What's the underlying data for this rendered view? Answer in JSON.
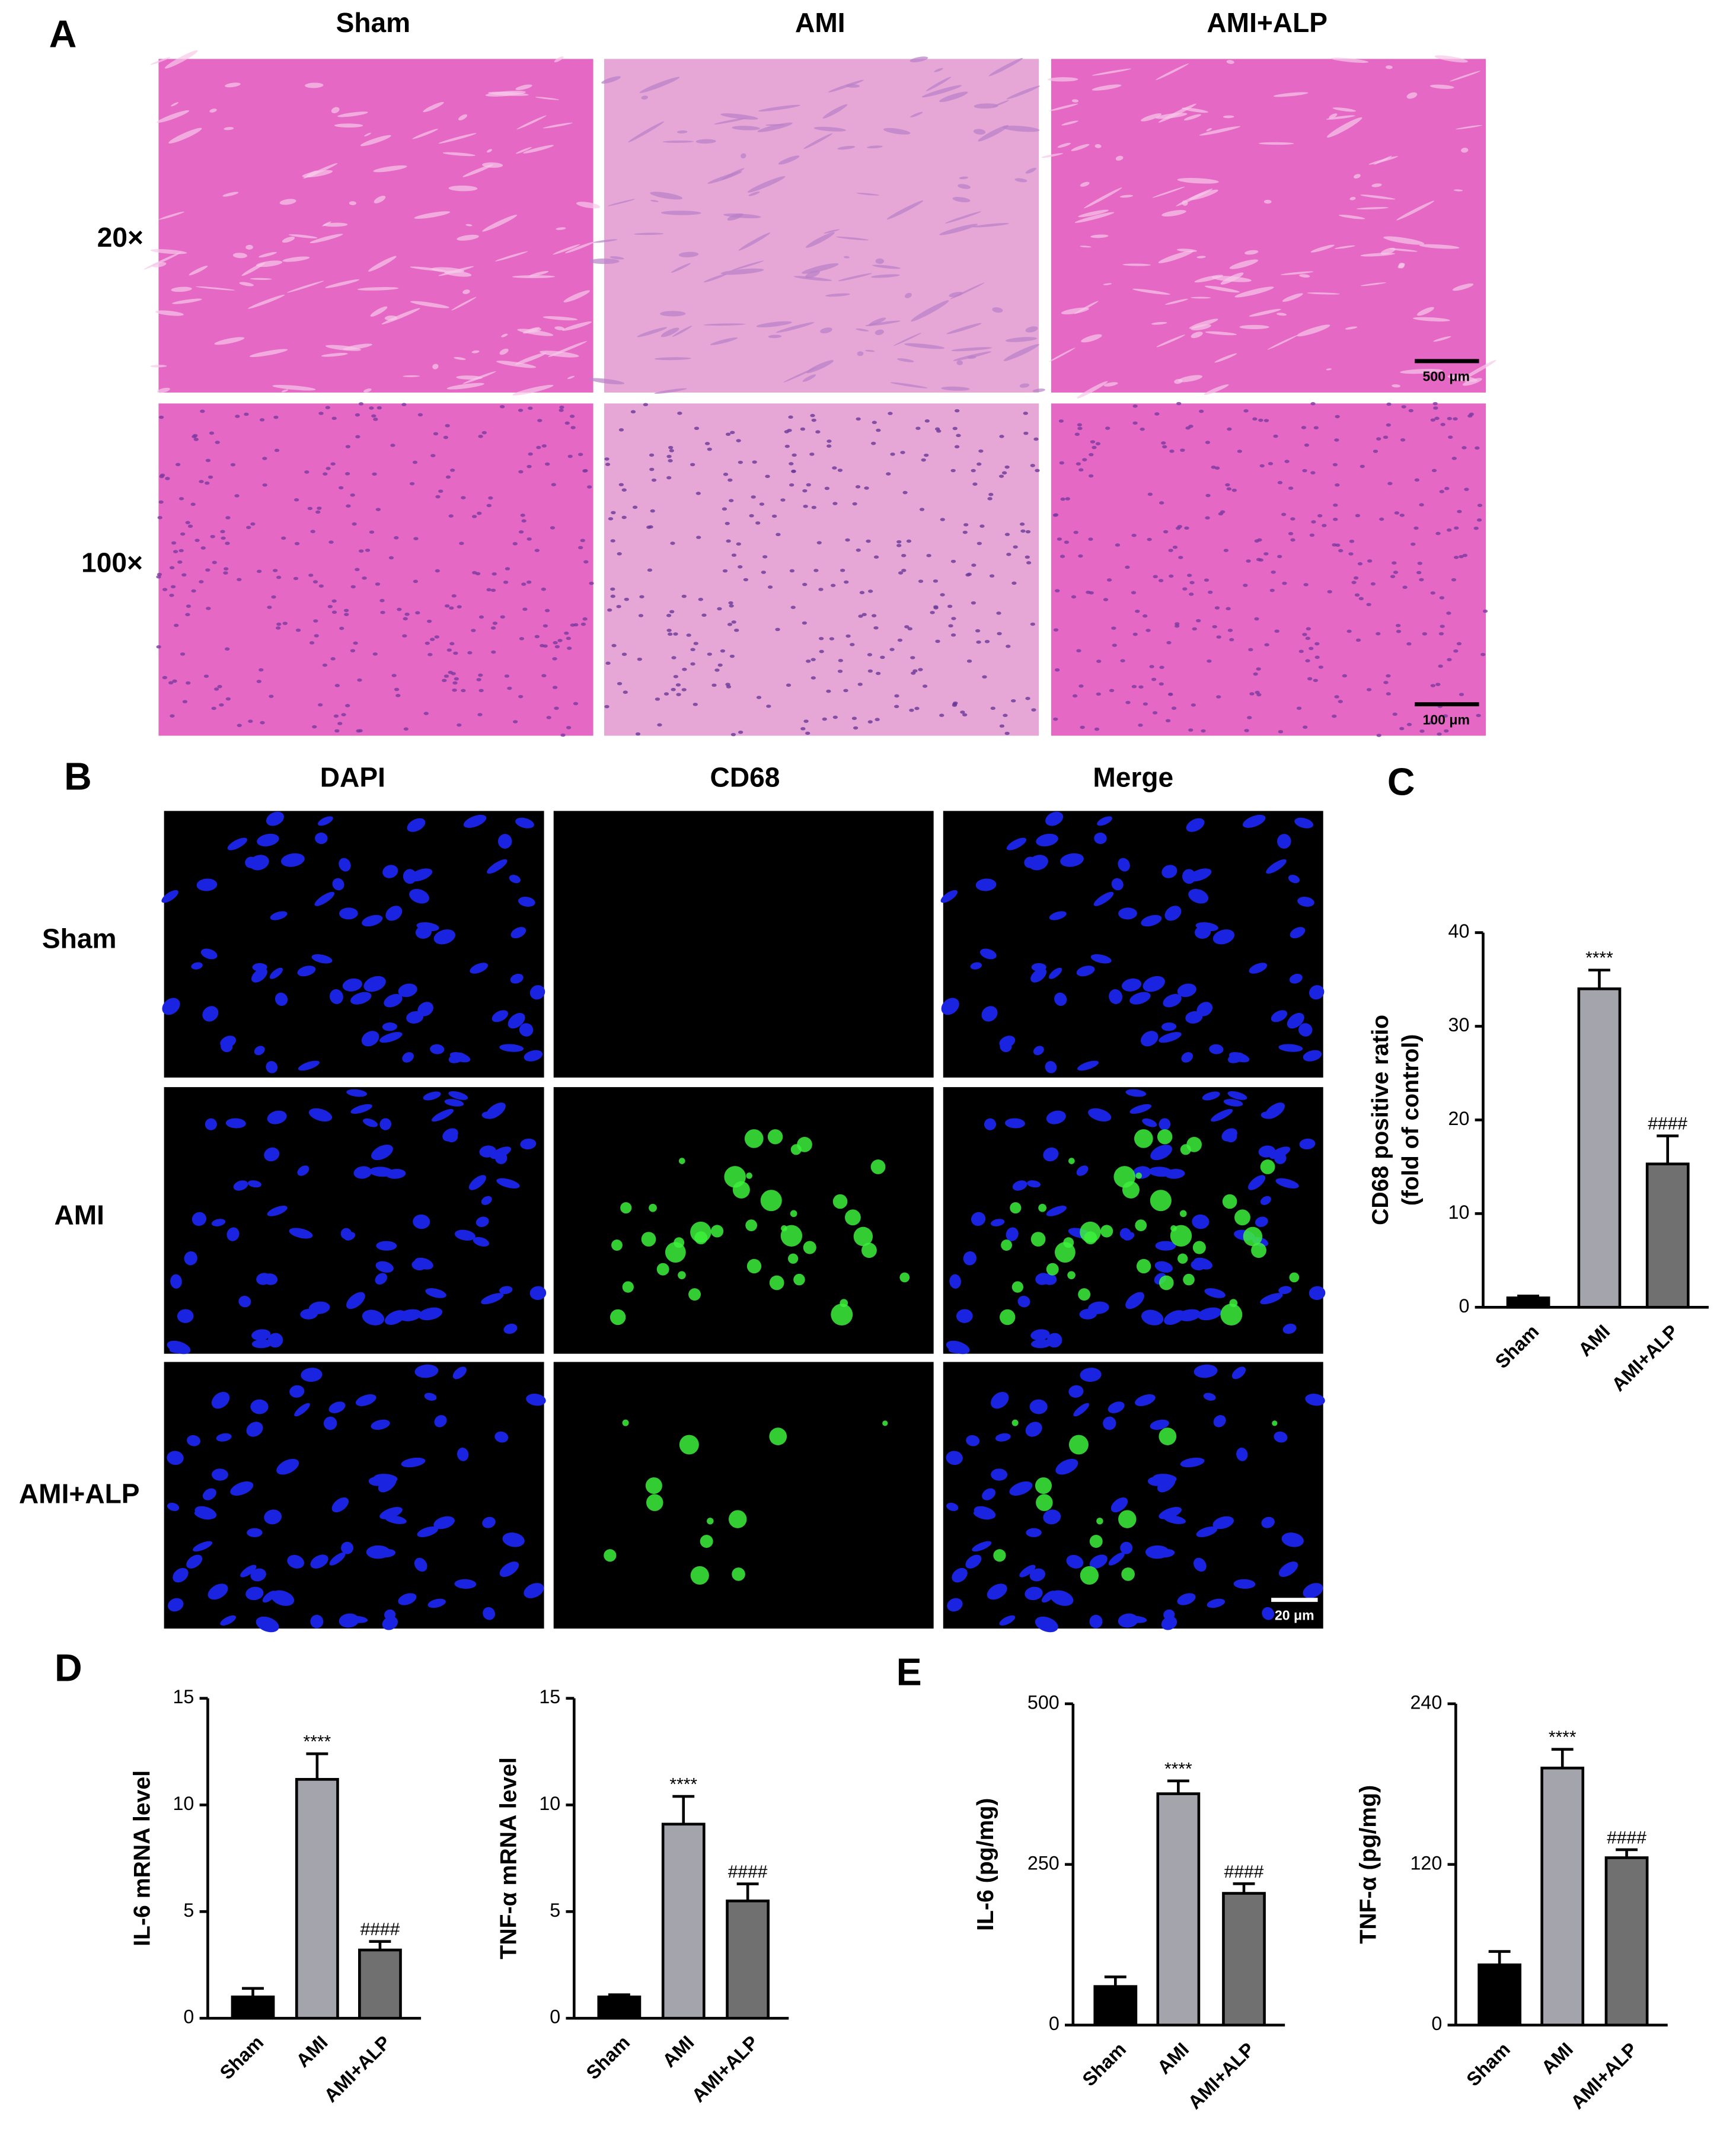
{
  "panels": {
    "A": {
      "label": "A",
      "columns": [
        "Sham",
        "AMI",
        "AMI+ALP"
      ],
      "rows": [
        "20×",
        "100×"
      ],
      "scale_bars": [
        "500 μm",
        "100 μm"
      ]
    },
    "B": {
      "label": "B",
      "columns": [
        "DAPI",
        "CD68",
        "Merge"
      ],
      "rows": [
        "Sham",
        "AMI",
        "AMI+ALP"
      ],
      "scale_bar": "20 μm"
    },
    "labels": [
      "C",
      "D",
      "E"
    ]
  },
  "chart_data": [
    {
      "type": "bar",
      "y_label": [
        "CD68 positive ratio",
        "(fold of control)"
      ],
      "categories": [
        "Sham",
        "AMI",
        "AMI+ALP"
      ],
      "values": [
        1.0,
        34.0,
        15.3
      ],
      "errors": [
        0.2,
        2.0,
        3.0
      ],
      "annotations": [
        null,
        "****",
        "####"
      ],
      "colors": [
        "#000000",
        "#a4a4ac",
        "#707070"
      ],
      "ylim": [
        0,
        40
      ],
      "yticks": [
        0,
        10,
        20,
        30,
        40
      ]
    },
    {
      "type": "bar",
      "y_label": [
        "IL-6 mRNA level"
      ],
      "categories": [
        "Sham",
        "AMI",
        "AMI+ALP"
      ],
      "values": [
        1.0,
        11.2,
        3.2
      ],
      "errors": [
        0.4,
        1.2,
        0.4
      ],
      "annotations": [
        null,
        "****",
        "####"
      ],
      "colors": [
        "#000000",
        "#a4a4ac",
        "#707070"
      ],
      "ylim": [
        0,
        15
      ],
      "yticks": [
        0,
        5,
        10,
        15
      ]
    },
    {
      "type": "bar",
      "y_label": [
        "TNF-α mRNA level"
      ],
      "categories": [
        "Sham",
        "AMI",
        "AMI+ALP"
      ],
      "values": [
        1.0,
        9.1,
        5.5
      ],
      "errors": [
        0.1,
        1.3,
        0.8
      ],
      "annotations": [
        null,
        "****",
        "####"
      ],
      "colors": [
        "#000000",
        "#a4a4ac",
        "#707070"
      ],
      "ylim": [
        0,
        15
      ],
      "yticks": [
        0,
        5,
        10,
        15
      ]
    },
    {
      "type": "bar",
      "y_label": [
        "IL-6 (pg/mg)"
      ],
      "categories": [
        "Sham",
        "AMI",
        "AMI+ALP"
      ],
      "values": [
        60,
        360,
        205
      ],
      "errors": [
        15,
        20,
        15
      ],
      "annotations": [
        null,
        "****",
        "####"
      ],
      "colors": [
        "#000000",
        "#a4a4ac",
        "#707070"
      ],
      "ylim": [
        0,
        500
      ],
      "yticks": [
        0,
        250,
        500
      ]
    },
    {
      "type": "bar",
      "y_label": [
        "TNF-α (pg/mg)"
      ],
      "categories": [
        "Sham",
        "AMI",
        "AMI+ALP"
      ],
      "values": [
        45,
        192,
        125
      ],
      "errors": [
        10,
        14,
        6
      ],
      "annotations": [
        null,
        "****",
        "####"
      ],
      "colors": [
        "#000000",
        "#a4a4ac",
        "#707070"
      ],
      "ylim": [
        0,
        240
      ],
      "yticks": [
        0,
        120,
        240
      ]
    }
  ]
}
